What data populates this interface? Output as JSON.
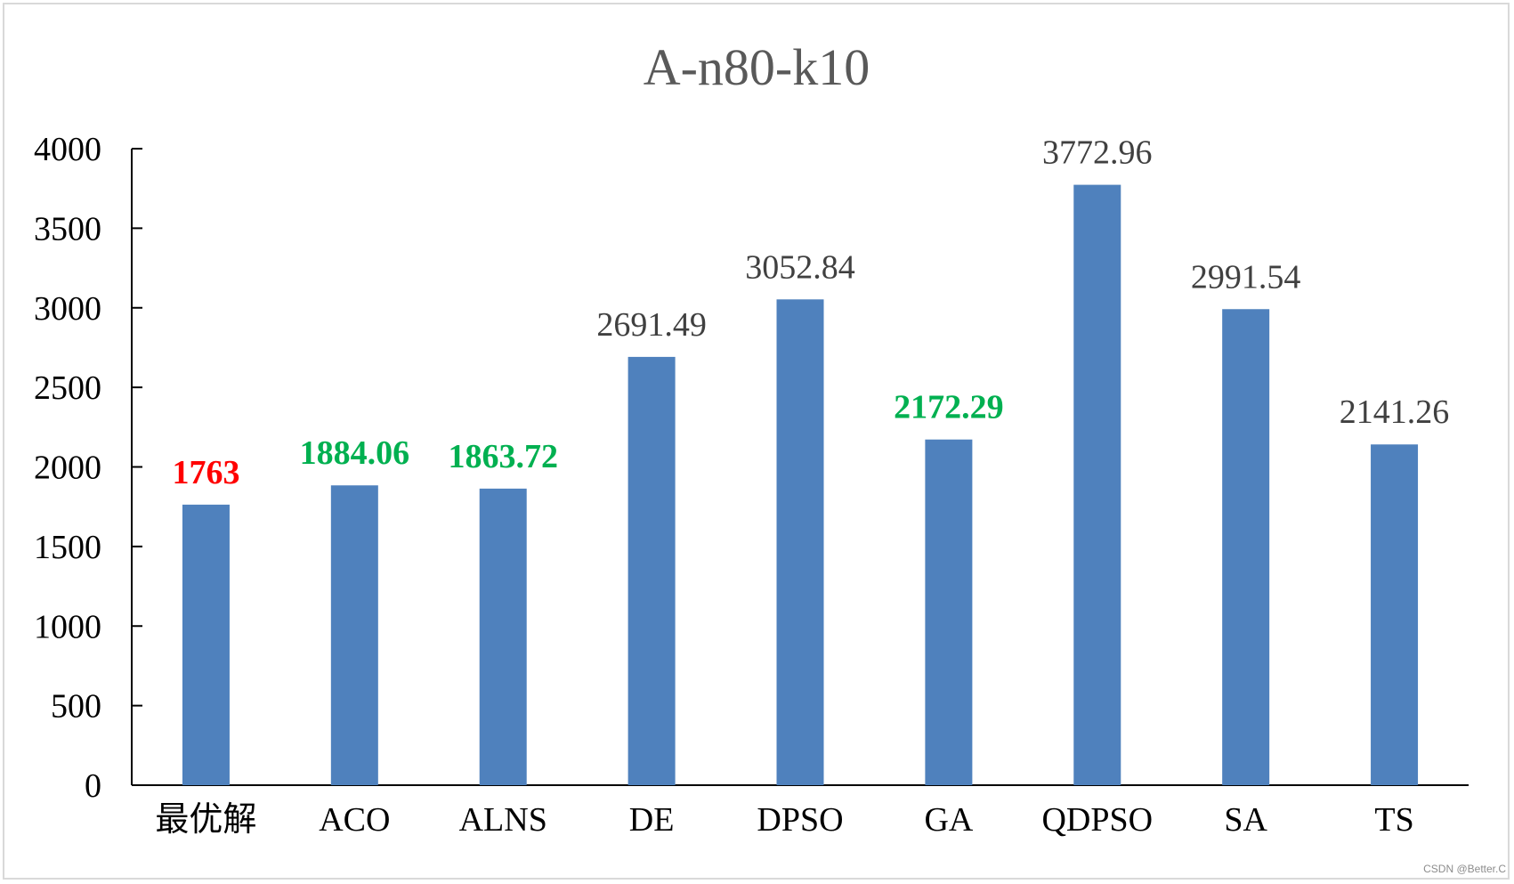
{
  "chart_data": {
    "type": "bar",
    "title": "A-n80-k10",
    "xlabel": "",
    "ylabel": "",
    "categories": [
      "最优解",
      "ACO",
      "ALNS",
      "DE",
      "DPSO",
      "GA",
      "QDPSO",
      "SA",
      "TS"
    ],
    "values": [
      1763,
      1884.06,
      1863.72,
      2691.49,
      3052.84,
      2172.29,
      3772.96,
      2991.54,
      2141.26
    ],
    "data_labels": [
      "1763",
      "1884.06",
      "1863.72",
      "2691.49",
      "3052.84",
      "2172.29",
      "3772.96",
      "2991.54",
      "2141.26"
    ],
    "label_colors": [
      "#ff0000",
      "#00b050",
      "#00b050",
      "#404040",
      "#404040",
      "#00b050",
      "#404040",
      "#404040",
      "#404040"
    ],
    "label_bold": [
      true,
      true,
      true,
      false,
      false,
      true,
      false,
      false,
      false
    ],
    "ylim": [
      0,
      4000
    ],
    "yticks": [
      0,
      500,
      1000,
      1500,
      2000,
      2500,
      3000,
      3500,
      4000
    ],
    "ytick_labels": [
      "0",
      "500",
      "1000",
      "1500",
      "2000",
      "2500",
      "3000",
      "3500",
      "4000"
    ],
    "grid": false,
    "legend": "none",
    "bar_color": "#4f81bd"
  },
  "watermark": "CSDN @Better.C"
}
